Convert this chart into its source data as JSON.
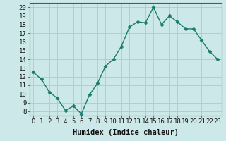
{
  "x": [
    0,
    1,
    2,
    3,
    4,
    5,
    6,
    7,
    8,
    9,
    10,
    11,
    12,
    13,
    14,
    15,
    16,
    17,
    18,
    19,
    20,
    21,
    22,
    23
  ],
  "y": [
    12.5,
    11.7,
    10.2,
    9.5,
    8.1,
    8.6,
    7.7,
    9.9,
    11.2,
    13.2,
    14.0,
    15.5,
    17.7,
    18.3,
    18.2,
    20.0,
    18.0,
    19.0,
    18.3,
    17.5,
    17.5,
    16.2,
    14.9,
    14.0
  ],
  "xlabel": "Humidex (Indice chaleur)",
  "ylabel": "",
  "xlim": [
    -0.5,
    23.5
  ],
  "ylim": [
    7.5,
    20.5
  ],
  "yticks": [
    8,
    9,
    10,
    11,
    12,
    13,
    14,
    15,
    16,
    17,
    18,
    19,
    20
  ],
  "xticks": [
    0,
    1,
    2,
    3,
    4,
    5,
    6,
    7,
    8,
    9,
    10,
    11,
    12,
    13,
    14,
    15,
    16,
    17,
    18,
    19,
    20,
    21,
    22,
    23
  ],
  "line_color": "#1a7a6e",
  "marker_color": "#1a7a6e",
  "bg_color": "#cce8e8",
  "grid_color": "#aacccc",
  "tick_label_fontsize": 6.5,
  "xlabel_fontsize": 7.5,
  "line_width": 1.0,
  "marker_size": 2.5
}
